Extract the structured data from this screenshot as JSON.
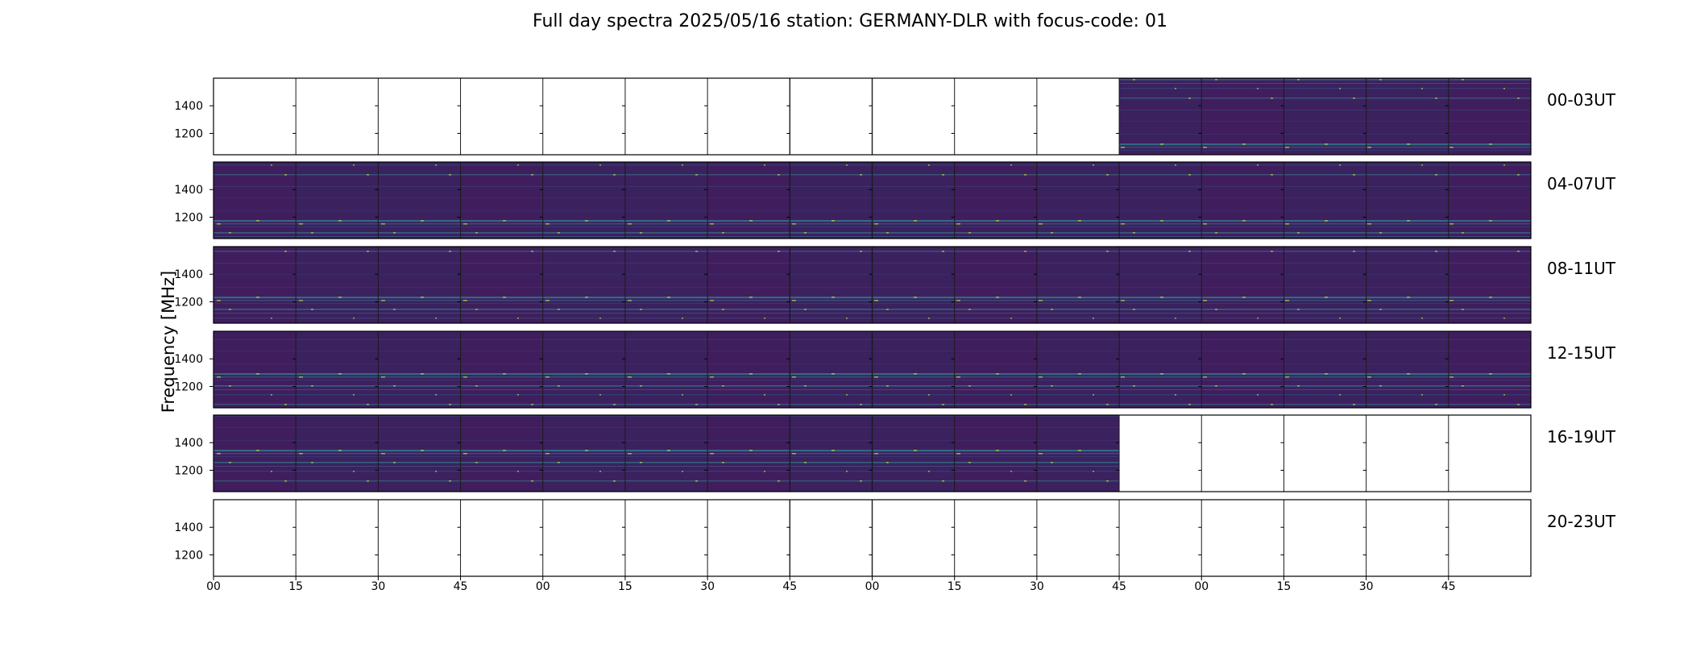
{
  "chart_data": {
    "type": "heatmap",
    "title": "Full day spectra 2025/05/16 station: GERMANY-DLR with focus-code: 01",
    "ylabel": "Frequency [MHz]",
    "xlabel": "",
    "y_ticks": [
      1400,
      1200
    ],
    "y_range_mhz": [
      1045,
      1600
    ],
    "x_tick_labels": [
      "00",
      "15",
      "30",
      "45",
      "00",
      "15",
      "30",
      "45",
      "00",
      "15",
      "30",
      "45",
      "00",
      "15",
      "30",
      "45"
    ],
    "grid": false,
    "colormap": "viridis",
    "colors": {
      "background": "#ffffff",
      "panel_empty": "#ffffff",
      "spectrum_base": "#3f1f5e",
      "rfi_bright": "#2ea6a0",
      "rfi_peak": "#c8dc3a",
      "frame": "#000000",
      "divider": "#1a1a1a"
    },
    "rows": [
      {
        "label": "00-03UT",
        "filled": [
          false,
          false,
          false,
          false,
          false,
          false,
          false,
          false,
          false,
          false,
          false,
          true,
          true,
          true,
          true,
          true
        ]
      },
      {
        "label": "04-07UT",
        "filled": [
          true,
          true,
          true,
          true,
          true,
          true,
          true,
          true,
          true,
          true,
          true,
          true,
          true,
          true,
          true,
          true
        ]
      },
      {
        "label": "08-11UT",
        "filled": [
          true,
          true,
          true,
          true,
          true,
          true,
          true,
          true,
          true,
          true,
          true,
          true,
          true,
          true,
          true,
          true
        ]
      },
      {
        "label": "12-15UT",
        "filled": [
          true,
          true,
          true,
          true,
          true,
          true,
          true,
          true,
          true,
          true,
          true,
          true,
          true,
          true,
          true,
          true
        ]
      },
      {
        "label": "16-19UT",
        "filled": [
          true,
          true,
          true,
          true,
          true,
          true,
          true,
          true,
          true,
          true,
          true,
          false,
          false,
          false,
          false,
          false
        ]
      },
      {
        "label": "20-23UT",
        "filled": [
          false,
          false,
          false,
          false,
          false,
          false,
          false,
          false,
          false,
          false,
          false,
          false,
          false,
          false,
          false,
          false
        ]
      }
    ]
  }
}
